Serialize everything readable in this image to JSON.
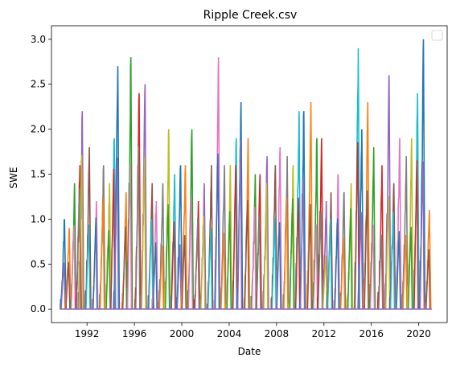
{
  "chart_data": {
    "type": "line",
    "title": "Ripple Creek.csv",
    "xlabel": "Date",
    "ylabel": "SWE",
    "xlim": [
      1989.0,
      2022.4
    ],
    "ylim": [
      -0.15,
      3.15
    ],
    "x_ticks": [
      {
        "value": 1992,
        "label": "1992"
      },
      {
        "value": 1996,
        "label": "1996"
      },
      {
        "value": 2000,
        "label": "2000"
      },
      {
        "value": 2004,
        "label": "2004"
      },
      {
        "value": 2008,
        "label": "2008"
      },
      {
        "value": 2012,
        "label": "2012"
      },
      {
        "value": 2016,
        "label": "2016"
      },
      {
        "value": 2020,
        "label": "2020"
      }
    ],
    "y_ticks": [
      {
        "value": 0.0,
        "label": "0.0"
      },
      {
        "value": 0.5,
        "label": "0.5"
      },
      {
        "value": 1.0,
        "label": "1.0"
      },
      {
        "value": 1.5,
        "label": "1.5"
      },
      {
        "value": 2.0,
        "label": "2.0"
      },
      {
        "value": 2.5,
        "label": "2.5"
      },
      {
        "value": 3.0,
        "label": "3.0"
      }
    ],
    "grid": false,
    "legend": {
      "placement": "top-right",
      "entries": []
    },
    "colors": [
      "#1f77b4",
      "#ff7f0e",
      "#2ca02c",
      "#d62728",
      "#9467bd",
      "#8c564b",
      "#e377c2",
      "#7f7f7f",
      "#bcbd22",
      "#17becf"
    ],
    "series": [
      {
        "x": [
          1990.1,
          1990.5,
          1990.95,
          1991.4,
          1991.6,
          1992.2,
          1992.8,
          1993.4,
          1993.9,
          1994.3,
          1994.6,
          1995.3,
          1995.7,
          1996.4,
          1996.9,
          1997.5,
          1997.85,
          1998.4,
          1998.9,
          1999.4,
          1999.9,
          2000.3,
          2000.85,
          2001.4,
          2001.9,
          2002.5,
          2003.1,
          2003.6,
          2004.1,
          2004.6,
          2005.0,
          2005.6,
          2006.2,
          2006.6,
          2007.2,
          2007.9,
          2008.3,
          2008.9,
          2009.4,
          2009.9,
          2010.3,
          2010.9,
          2011.4,
          2011.8,
          2012.2,
          2012.6,
          2013.2,
          2013.7,
          2014.3,
          2014.9,
          2015.2,
          2015.7,
          2016.2,
          2016.9,
          2017.5,
          2017.9,
          2018.4,
          2018.95,
          2019.4,
          2019.9,
          2020.4,
          2020.9
        ],
        "y": [
          1.0,
          0.9,
          1.4,
          1.6,
          2.2,
          1.8,
          1.2,
          1.6,
          1.4,
          1.9,
          2.7,
          1.3,
          2.8,
          2.4,
          2.5,
          1.4,
          1.2,
          1.4,
          2.0,
          1.5,
          1.6,
          1.6,
          2.0,
          1.2,
          1.4,
          1.6,
          2.8,
          1.6,
          1.6,
          1.9,
          2.3,
          1.9,
          1.5,
          1.5,
          1.7,
          1.6,
          1.8,
          1.7,
          1.6,
          2.2,
          2.2,
          2.3,
          1.9,
          1.9,
          1.2,
          1.3,
          1.5,
          1.3,
          1.4,
          2.9,
          2.0,
          2.3,
          1.8,
          1.6,
          2.6,
          1.4,
          1.9,
          1.7,
          1.9,
          2.4,
          3.0,
          1.1
        ]
      }
    ]
  }
}
